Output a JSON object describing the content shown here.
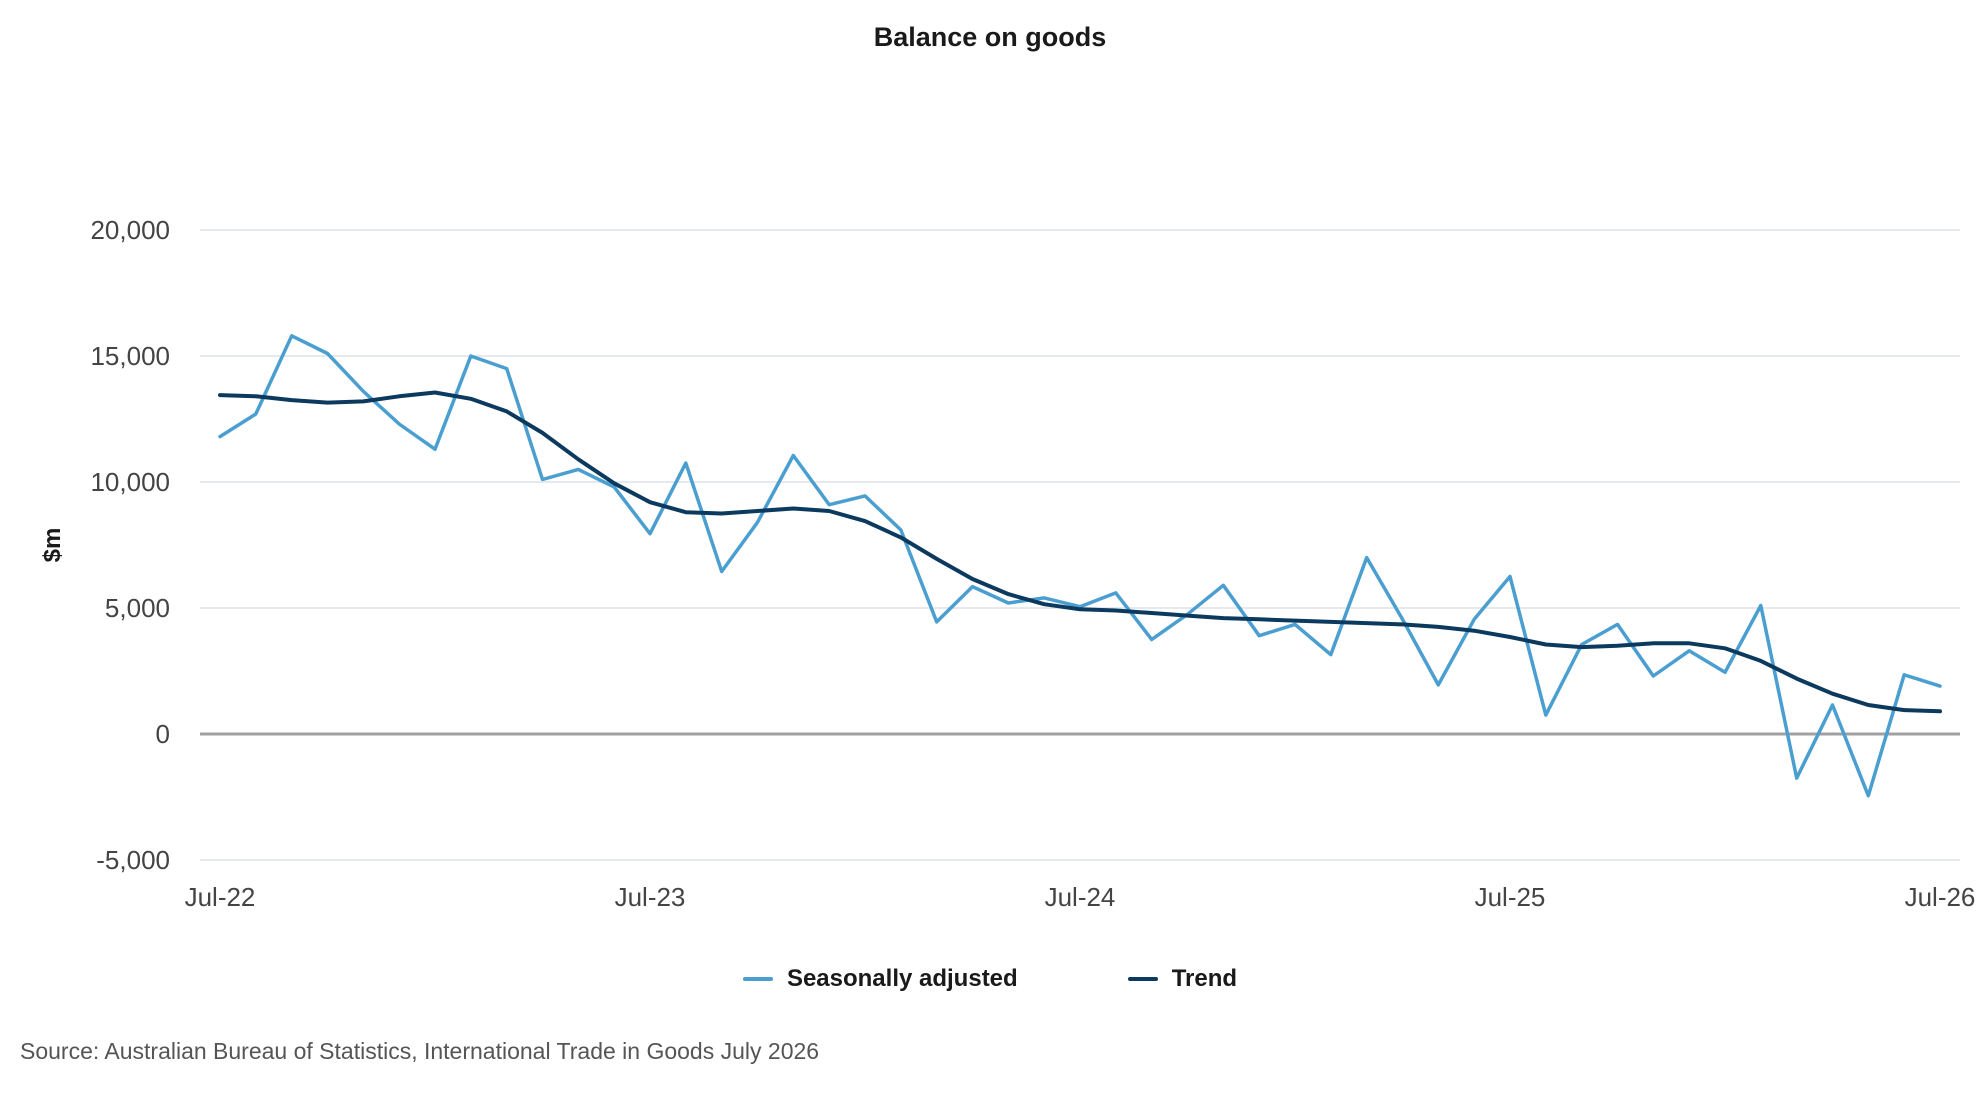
{
  "chart_data": {
    "type": "line",
    "title": "Balance on goods",
    "ylabel": "$m",
    "ylim": [
      -5000,
      20000
    ],
    "yticks": [
      -5000,
      0,
      5000,
      10000,
      15000,
      20000
    ],
    "ytick_labels": [
      "-5,000",
      "0",
      "5,000",
      "10,000",
      "15,000",
      "20,000"
    ],
    "xticks": [
      "Jul-22",
      "Jul-23",
      "Jul-24",
      "Jul-25",
      "Jul-26"
    ],
    "x_start": "Jul-22",
    "x_end": "Jul-26",
    "grid": true,
    "legend_position": "bottom-center",
    "series": [
      {
        "name": "Seasonally adjusted",
        "color": "#4a9fd0",
        "values": [
          11800,
          12700,
          15800,
          15100,
          13600,
          12300,
          11300,
          15000,
          14500,
          10100,
          10500,
          9800,
          7950,
          10750,
          6450,
          8400,
          11050,
          9100,
          9450,
          8100,
          4450,
          5850,
          5200,
          5400,
          5050,
          5600,
          3750,
          4750,
          5900,
          3900,
          4350,
          3150,
          7000,
          4550,
          1950,
          4550,
          6250,
          750,
          3550,
          4350,
          2300,
          3300,
          2450,
          5100,
          -1750,
          1150,
          -2450,
          2350,
          1900
        ]
      },
      {
        "name": "Trend",
        "color": "#0c3a5e",
        "values": [
          13450,
          13400,
          13250,
          13150,
          13200,
          13400,
          13550,
          13300,
          12800,
          11950,
          10900,
          9950,
          9200,
          8800,
          8750,
          8850,
          8950,
          8850,
          8450,
          7800,
          6950,
          6150,
          5550,
          5150,
          4950,
          4900,
          4800,
          4700,
          4600,
          4550,
          4500,
          4450,
          4400,
          4350,
          4250,
          4100,
          3850,
          3550,
          3450,
          3500,
          3600,
          3600,
          3400,
          2900,
          2200,
          1600,
          1150,
          950,
          900
        ]
      }
    ]
  },
  "source": "Source: Australian Bureau of Statistics, International Trade in Goods July 2026"
}
